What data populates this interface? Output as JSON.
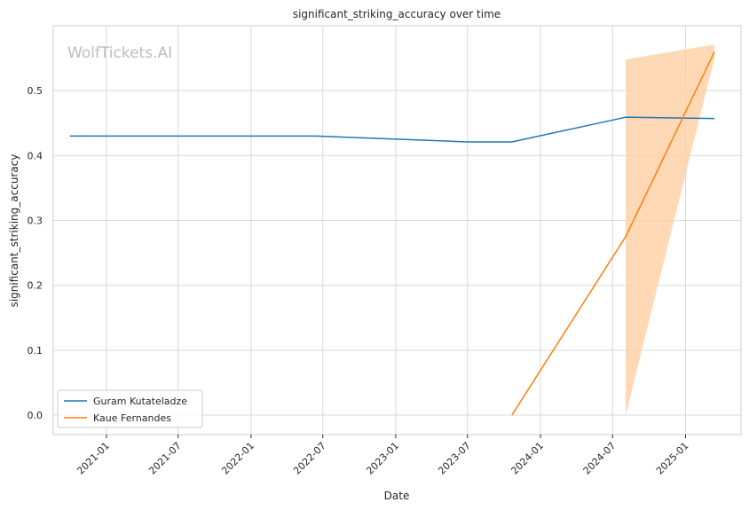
{
  "chart_data": {
    "type": "line",
    "title": "significant_striking_accuracy over time",
    "xlabel": "Date",
    "ylabel": "significant_striking_accuracy",
    "watermark": "WolfTickets.AI",
    "x_axis_type": "date",
    "xlim": [
      "2020-08-20",
      "2025-05-21"
    ],
    "ylim": [
      -0.03,
      0.6
    ],
    "x_ticks": [
      "2021-01",
      "2021-07",
      "2022-01",
      "2022-07",
      "2023-01",
      "2023-07",
      "2024-01",
      "2024-07",
      "2025-01"
    ],
    "y_ticks": [
      "0.0",
      "0.1",
      "0.2",
      "0.3",
      "0.4",
      "0.5"
    ],
    "grid": true,
    "legend_position": "lower-left",
    "series": [
      {
        "name": "Guram Kutateladze",
        "color": "#1f77b4",
        "points": [
          {
            "x": "2020-10-01",
            "y": 0.43
          },
          {
            "x": "2022-06-15",
            "y": 0.43
          },
          {
            "x": "2023-07-01",
            "y": 0.421
          },
          {
            "x": "2023-10-21",
            "y": 0.421
          },
          {
            "x": "2024-08-03",
            "y": 0.459
          },
          {
            "x": "2025-03-15",
            "y": 0.457
          }
        ]
      },
      {
        "name": "Kaue Fernandes",
        "color": "#ff7f0e",
        "points": [
          {
            "x": "2023-10-21",
            "y": 0.0
          },
          {
            "x": "2024-08-03",
            "y": 0.275
          },
          {
            "x": "2025-03-15",
            "y": 0.56
          }
        ],
        "band": [
          {
            "x": "2024-08-03",
            "lower": 0.0,
            "upper": 0.548
          },
          {
            "x": "2025-03-15",
            "lower": 0.55,
            "upper": 0.571
          }
        ],
        "band_color": "#ffcfa3"
      }
    ]
  }
}
